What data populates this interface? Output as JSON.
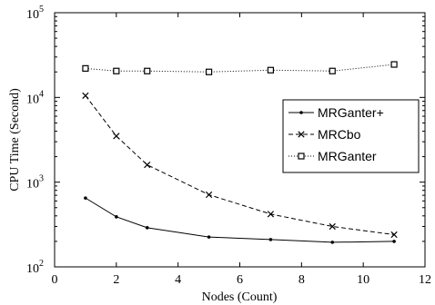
{
  "chart_data": {
    "type": "line",
    "xlabel": "Nodes (Count)",
    "ylabel": "CPU Time (Second)",
    "xlim": [
      0,
      12
    ],
    "ylim": [
      100,
      100000
    ],
    "yscale": "log",
    "x_ticks": [
      "0",
      "2",
      "4",
      "6",
      "8",
      "10",
      "12"
    ],
    "y_ticks": [
      {
        "base": "10",
        "exp": "2"
      },
      {
        "base": "10",
        "exp": "3"
      },
      {
        "base": "10",
        "exp": "4"
      },
      {
        "base": "10",
        "exp": "5"
      }
    ],
    "grid": false,
    "legend_position": "right, upper-middle",
    "series": [
      {
        "name": "MRGanter+",
        "style": "solid",
        "marker": "dot",
        "color": "#000000",
        "x": [
          1,
          2,
          3,
          5,
          7,
          9,
          11
        ],
        "y": [
          650,
          390,
          290,
          225,
          210,
          195,
          200
        ]
      },
      {
        "name": "MRCbo",
        "style": "dashed",
        "marker": "x",
        "color": "#000000",
        "x": [
          1,
          2,
          3,
          5,
          7,
          9,
          11
        ],
        "y": [
          10500,
          3500,
          1600,
          710,
          420,
          300,
          240
        ]
      },
      {
        "name": "MRGanter",
        "style": "dotted",
        "marker": "square",
        "color": "#000000",
        "x": [
          1,
          2,
          3,
          5,
          7,
          9,
          11
        ],
        "y": [
          22000,
          20500,
          20500,
          20000,
          21000,
          20500,
          24500
        ]
      }
    ]
  }
}
